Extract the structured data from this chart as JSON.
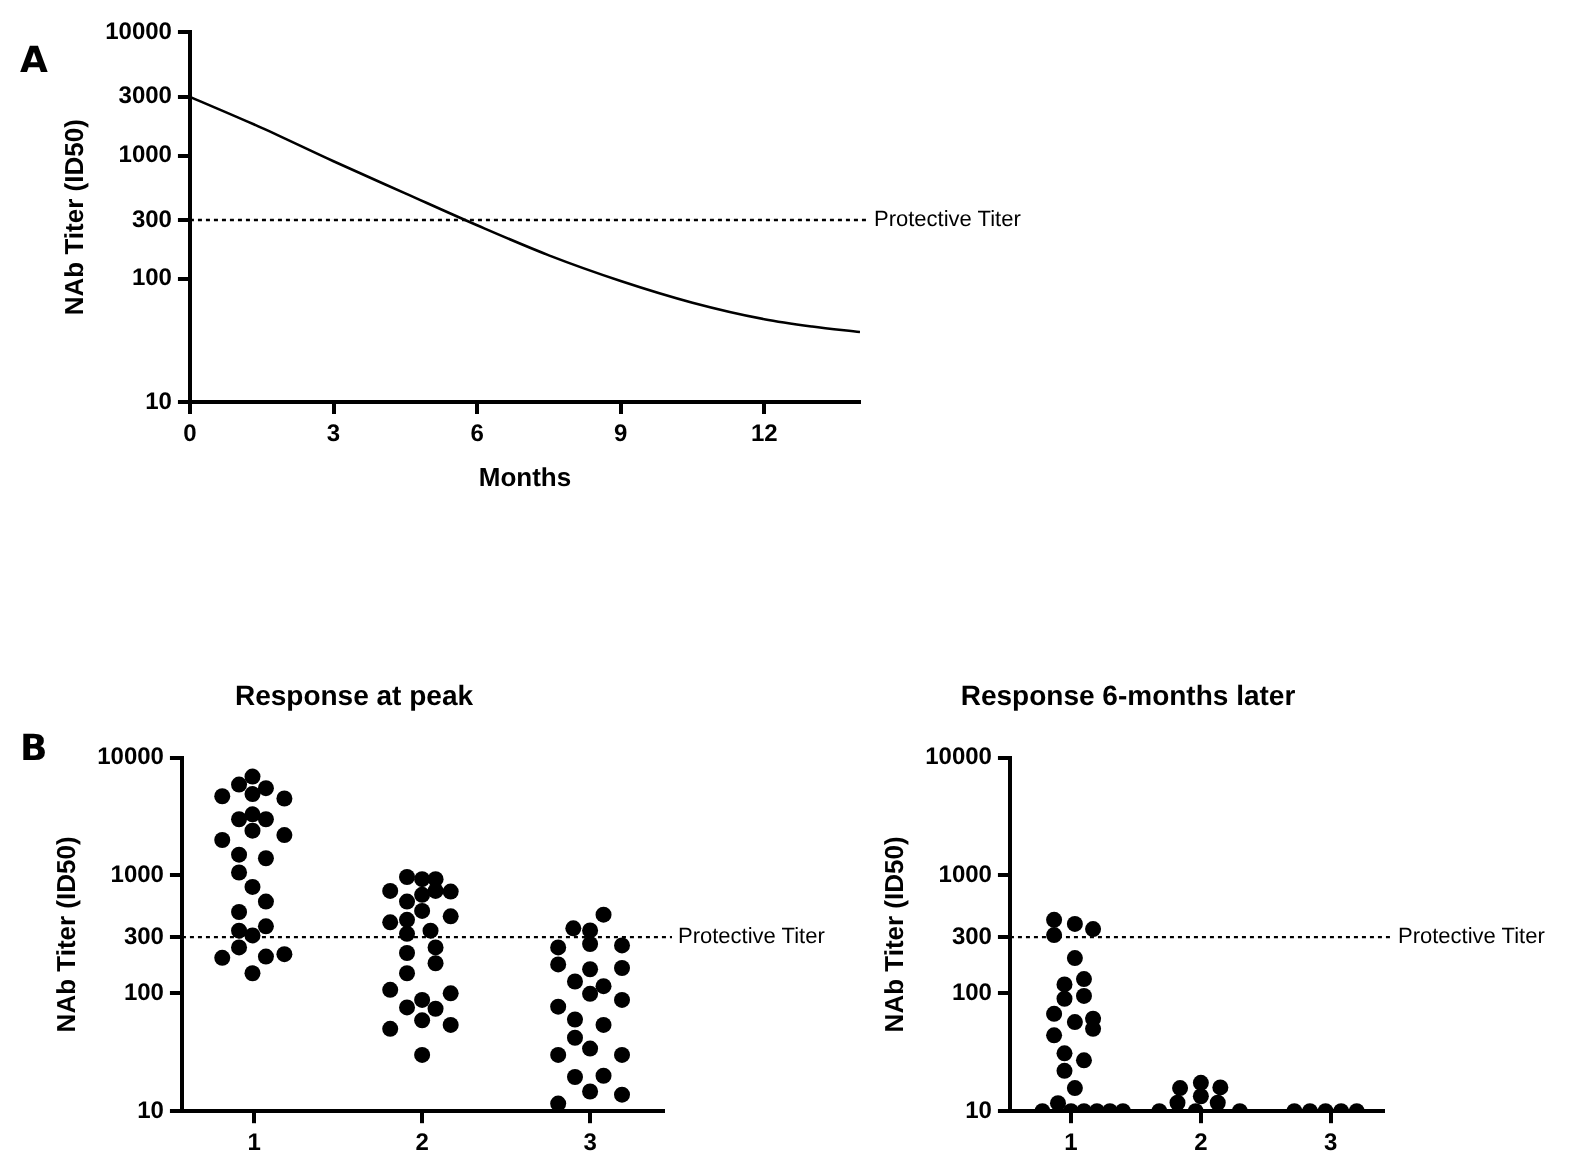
{
  "chart_data": [
    {
      "type": "line",
      "x": [
        0,
        1.5,
        3,
        4.5,
        6,
        7.5,
        9,
        10.5,
        12,
        13,
        14
      ],
      "values": [
        3000,
        1680,
        900,
        494,
        272,
        155,
        96,
        64,
        47,
        41,
        37
      ],
      "color": "#000000",
      "xlim": [
        0,
        14
      ],
      "xticks": [
        0,
        3,
        6,
        9,
        12
      ],
      "ylim": [
        10,
        10000
      ],
      "yticks": [
        10,
        100,
        300,
        1000,
        3000,
        10000
      ],
      "log": true,
      "xlabel": "Months",
      "ylabel": "NAb Titer (ID50)",
      "marker": "none",
      "ref_lines": [
        {
          "axis": "y",
          "value": 300,
          "label": "Protective Titer",
          "line_style": "dotted"
        }
      ],
      "annotations": [
        "A"
      ],
      "legend": false,
      "grid": false
    },
    {
      "type": "scatter",
      "title": "Response at peak",
      "ylabel": "NAb Titer (ID50)",
      "color": "#000000",
      "marker": "circle",
      "log": true,
      "legend": false,
      "grid": false,
      "xlim": [
        0.57,
        3.44
      ],
      "xticks": [
        1,
        2,
        3
      ],
      "ylim": [
        10,
        10000
      ],
      "yticks": [
        10,
        100,
        300,
        1000,
        10000
      ],
      "x": [
        0.81,
        0.91,
        0.99,
        1.07,
        1.18,
        0.99,
        0.91,
        0.99,
        1.07,
        0.81,
        0.99,
        1.18,
        0.91,
        1.07,
        0.91,
        0.99,
        1.07,
        0.91,
        1.07,
        0.91,
        0.99,
        0.81,
        0.91,
        1.07,
        1.18,
        0.99,
        1.81,
        1.91,
        2.0,
        2.08,
        2.17,
        1.91,
        2.0,
        2.08,
        1.81,
        1.91,
        2.0,
        2.17,
        1.91,
        2.05,
        1.91,
        2.08,
        1.91,
        2.08,
        2.17,
        1.81,
        2.0,
        1.91,
        2.08,
        1.81,
        2.0,
        2.17,
        2.0,
        2.9,
        3.08,
        3.0,
        2.81,
        3.0,
        3.19,
        2.81,
        3.0,
        3.19,
        2.91,
        3.08,
        3.0,
        3.19,
        2.81,
        2.91,
        3.08,
        2.91,
        3.0,
        2.81,
        3.19,
        2.91,
        3.08,
        3.0,
        3.19,
        2.81
      ],
      "values": [
        4700,
        5900,
        6900,
        5500,
        4500,
        4900,
        3000,
        3300,
        3000,
        2000,
        2400,
        2200,
        1500,
        1400,
        1060,
        800,
        600,
        490,
        370,
        340,
        310,
        200,
        245,
        205,
        215,
        148,
        740,
        970,
        930,
        930,
        730,
        600,
        685,
        740,
        400,
        420,
        500,
        450,
        320,
        340,
        220,
        245,
        148,
        180,
        100,
        107,
        88,
        76,
        74,
        50,
        59,
        54,
        30,
        356,
        465,
        342,
        245,
        262,
        255,
        176,
        160,
        164,
        126,
        115,
        99,
        88,
        77,
        60,
        54,
        42,
        34,
        30,
        30,
        19.5,
        20,
        14.7,
        13.8,
        11.6
      ],
      "ref_lines": [
        {
          "axis": "y",
          "value": 300,
          "label": "Protective Titer",
          "line_style": "dotted"
        }
      ],
      "annotations": [
        "B"
      ]
    },
    {
      "type": "scatter",
      "title": "Response 6-months later",
      "ylabel": "NAb Titer (ID50)",
      "color": "#000000",
      "marker": "circle",
      "log": true,
      "legend": false,
      "grid": false,
      "xlim": [
        0.53,
        3.41
      ],
      "xticks": [
        1,
        2,
        3
      ],
      "ylim": [
        10,
        10000
      ],
      "yticks": [
        10,
        100,
        300,
        1000,
        10000
      ],
      "x": [
        0.87,
        0.87,
        1.03,
        1.17,
        1.03,
        0.95,
        1.1,
        0.95,
        1.1,
        0.87,
        1.03,
        1.17,
        1.17,
        0.87,
        0.95,
        0.95,
        1.1,
        1.03,
        0.9,
        0.78,
        1.0,
        1.1,
        1.2,
        1.3,
        1.4,
        1.84,
        1.82,
        2.0,
        2.0,
        2.13,
        2.15,
        1.68,
        1.96,
        2.3,
        2.72,
        2.84,
        2.96,
        3.08,
        3.2
      ],
      "values": [
        420,
        312,
        388,
        351,
        199,
        119,
        132,
        90,
        95,
        67,
        57,
        61,
        50,
        44,
        31,
        22,
        27,
        15.7,
        11.7,
        10,
        10,
        10,
        10,
        10,
        10,
        15.7,
        11.8,
        17.4,
        13.4,
        11.8,
        15.9,
        10,
        10,
        10,
        10,
        10,
        10,
        10,
        10
      ],
      "ref_lines": [
        {
          "axis": "y",
          "value": 300,
          "label": "Protective Titer",
          "line_style": "dotted"
        }
      ]
    }
  ]
}
